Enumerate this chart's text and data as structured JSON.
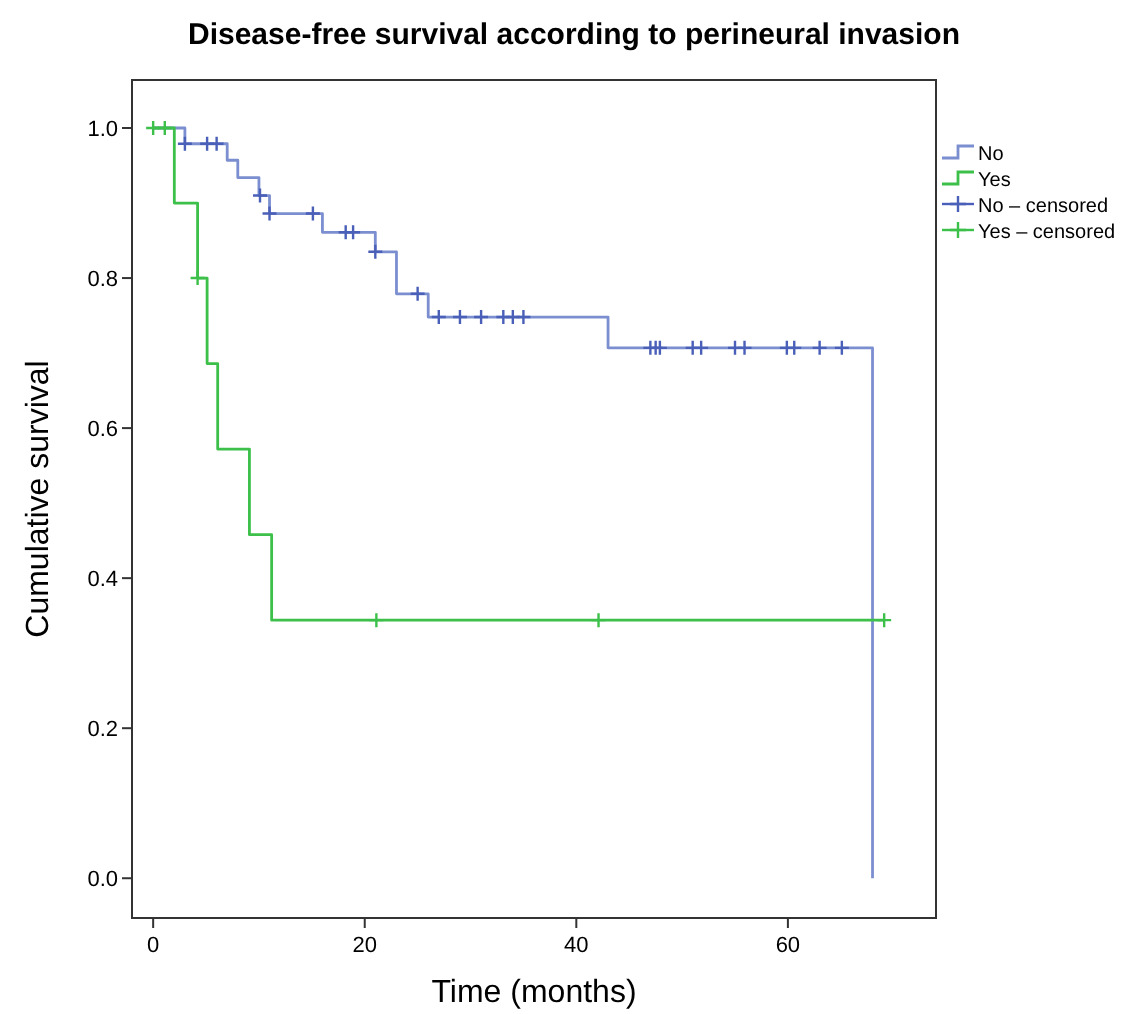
{
  "chart_data": {
    "type": "step",
    "title": "Disease-free survival according to perineural invasion",
    "xlabel": "Time (months)",
    "ylabel": "Cumulative survival",
    "xlim": [
      -2,
      74
    ],
    "xticks": [
      0,
      20,
      40,
      60
    ],
    "ylim": [
      -0.053,
      1.064
    ],
    "yticks": [
      {
        "value": 0,
        "label": "0.0"
      },
      {
        "value": 0.2,
        "label": "0.2"
      },
      {
        "value": 0.4,
        "label": "0.4"
      },
      {
        "value": 0.6,
        "label": "0.6"
      },
      {
        "value": 0.8,
        "label": "0.8"
      },
      {
        "value": 1,
        "label": "1.0"
      }
    ],
    "legend": "top right",
    "grid": false,
    "series": [
      {
        "name": "No",
        "color": "#7b8fd0",
        "x": [
          0,
          3,
          7,
          8,
          10,
          11,
          16,
          21,
          23,
          26,
          43,
          68
        ],
        "values": [
          1,
          0.979,
          0.957,
          0.934,
          0.91,
          0.886,
          0.861,
          0.835,
          0.779,
          0.748,
          0.707,
          0
        ]
      },
      {
        "name": "Yes",
        "color": "#3cc04a",
        "x": [
          0,
          2,
          4.2,
          5.1,
          6.1,
          9.1,
          11.2,
          69
        ],
        "values": [
          1,
          0.9,
          0.8,
          0.686,
          0.572,
          0.458,
          0.344,
          0.344
        ]
      },
      {
        "name": "No – censored",
        "type": "scatter",
        "marker": "cross",
        "color": "#4a5fb8",
        "x": [
          3,
          5.1,
          6,
          10.1,
          11,
          15.1,
          18.2,
          18.9,
          21,
          25,
          27,
          29,
          31,
          33.1,
          34,
          35,
          47,
          47.5,
          47.9,
          51,
          51.8,
          55,
          55.9,
          59.9,
          60.6,
          63,
          65.1
        ],
        "values": [
          0.979,
          0.979,
          0.979,
          0.91,
          0.886,
          0.886,
          0.861,
          0.861,
          0.835,
          0.779,
          0.748,
          0.748,
          0.748,
          0.748,
          0.748,
          0.748,
          0.707,
          0.707,
          0.707,
          0.707,
          0.707,
          0.707,
          0.707,
          0.707,
          0.707,
          0.707,
          0.707
        ]
      },
      {
        "name": "Yes – censored",
        "type": "scatter",
        "marker": "cross",
        "color": "#3cc04a",
        "x": [
          0,
          1.1,
          4.2,
          21.1,
          42.1,
          69.1
        ],
        "values": [
          1,
          1,
          0.8,
          0.344,
          0.344,
          0.344
        ]
      }
    ]
  }
}
